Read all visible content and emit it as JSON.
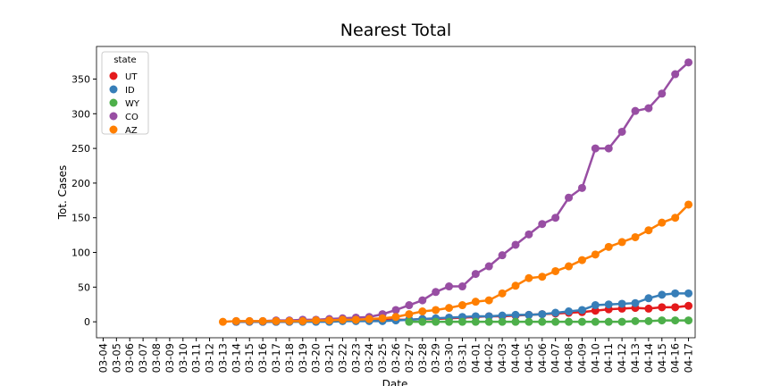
{
  "chart_data": {
    "type": "line",
    "title": "Nearest Total",
    "x_label": "Date",
    "y_label": "Tot. Cases",
    "legend_title": "state",
    "legend": "upper left",
    "categories": [
      "03-04",
      "03-05",
      "03-06",
      "03-07",
      "03-08",
      "03-09",
      "03-10",
      "03-11",
      "03-12",
      "03-13",
      "03-14",
      "03-15",
      "03-16",
      "03-17",
      "03-18",
      "03-19",
      "03-20",
      "03-21",
      "03-22",
      "03-23",
      "03-24",
      "03-25",
      "03-26",
      "03-27",
      "03-28",
      "03-29",
      "03-30",
      "03-31",
      "04-01",
      "04-02",
      "04-03",
      "04-04",
      "04-05",
      "04-06",
      "04-07",
      "04-08",
      "04-09",
      "04-10",
      "04-11",
      "04-12",
      "04-13",
      "04-14",
      "04-15",
      "04-16",
      "04-17"
    ],
    "ylim": [
      -23,
      397
    ],
    "yticks": [
      0,
      50,
      100,
      150,
      200,
      250,
      300,
      350
    ],
    "series": [
      {
        "name": "UT",
        "color": "#e41a1c",
        "values": [
          null,
          null,
          null,
          null,
          null,
          null,
          null,
          null,
          null,
          null,
          0,
          0,
          0,
          0,
          0,
          1,
          1,
          1,
          2,
          2,
          2,
          3,
          3,
          3,
          4,
          4,
          5,
          6,
          7,
          8,
          8,
          9,
          10,
          11,
          12,
          13,
          14,
          16,
          18,
          19,
          20,
          19,
          21,
          21,
          23
        ]
      },
      {
        "name": "ID",
        "color": "#377eb8",
        "values": [
          null,
          null,
          null,
          null,
          null,
          null,
          null,
          null,
          null,
          null,
          0,
          0,
          0,
          0,
          0,
          0,
          0,
          0,
          1,
          1,
          1,
          1,
          2,
          3,
          4,
          5,
          6,
          7,
          8,
          8,
          9,
          10,
          10,
          11,
          13,
          15,
          17,
          24,
          25,
          26,
          27,
          34,
          39,
          41,
          41
        ]
      },
      {
        "name": "WY",
        "color": "#4daf4a",
        "values": [
          null,
          null,
          null,
          null,
          null,
          null,
          null,
          null,
          null,
          null,
          null,
          null,
          null,
          null,
          null,
          null,
          null,
          null,
          null,
          null,
          null,
          null,
          null,
          0,
          0,
          0,
          0,
          0,
          0,
          0,
          0,
          0,
          0,
          0,
          0,
          0,
          0,
          0,
          0,
          0,
          1,
          1,
          2,
          2,
          2
        ]
      },
      {
        "name": "CO",
        "color": "#984ea3",
        "values": [
          null,
          null,
          null,
          null,
          null,
          null,
          null,
          null,
          null,
          null,
          1,
          1,
          1,
          2,
          2,
          3,
          3,
          4,
          5,
          6,
          7,
          11,
          17,
          24,
          31,
          43,
          51,
          51,
          69,
          80,
          96,
          111,
          126,
          141,
          150,
          179,
          193,
          250,
          250,
          274,
          304,
          308,
          329,
          357,
          374
        ]
      },
      {
        "name": "AZ",
        "color": "#ff7f00",
        "values": [
          null,
          null,
          null,
          null,
          null,
          null,
          null,
          null,
          null,
          0,
          1,
          1,
          1,
          1,
          1,
          1,
          2,
          2,
          3,
          3,
          4,
          5,
          7,
          11,
          15,
          17,
          20,
          24,
          29,
          31,
          41,
          52,
          63,
          65,
          73,
          80,
          89,
          97,
          108,
          115,
          122,
          132,
          143,
          150,
          169
        ]
      }
    ]
  }
}
